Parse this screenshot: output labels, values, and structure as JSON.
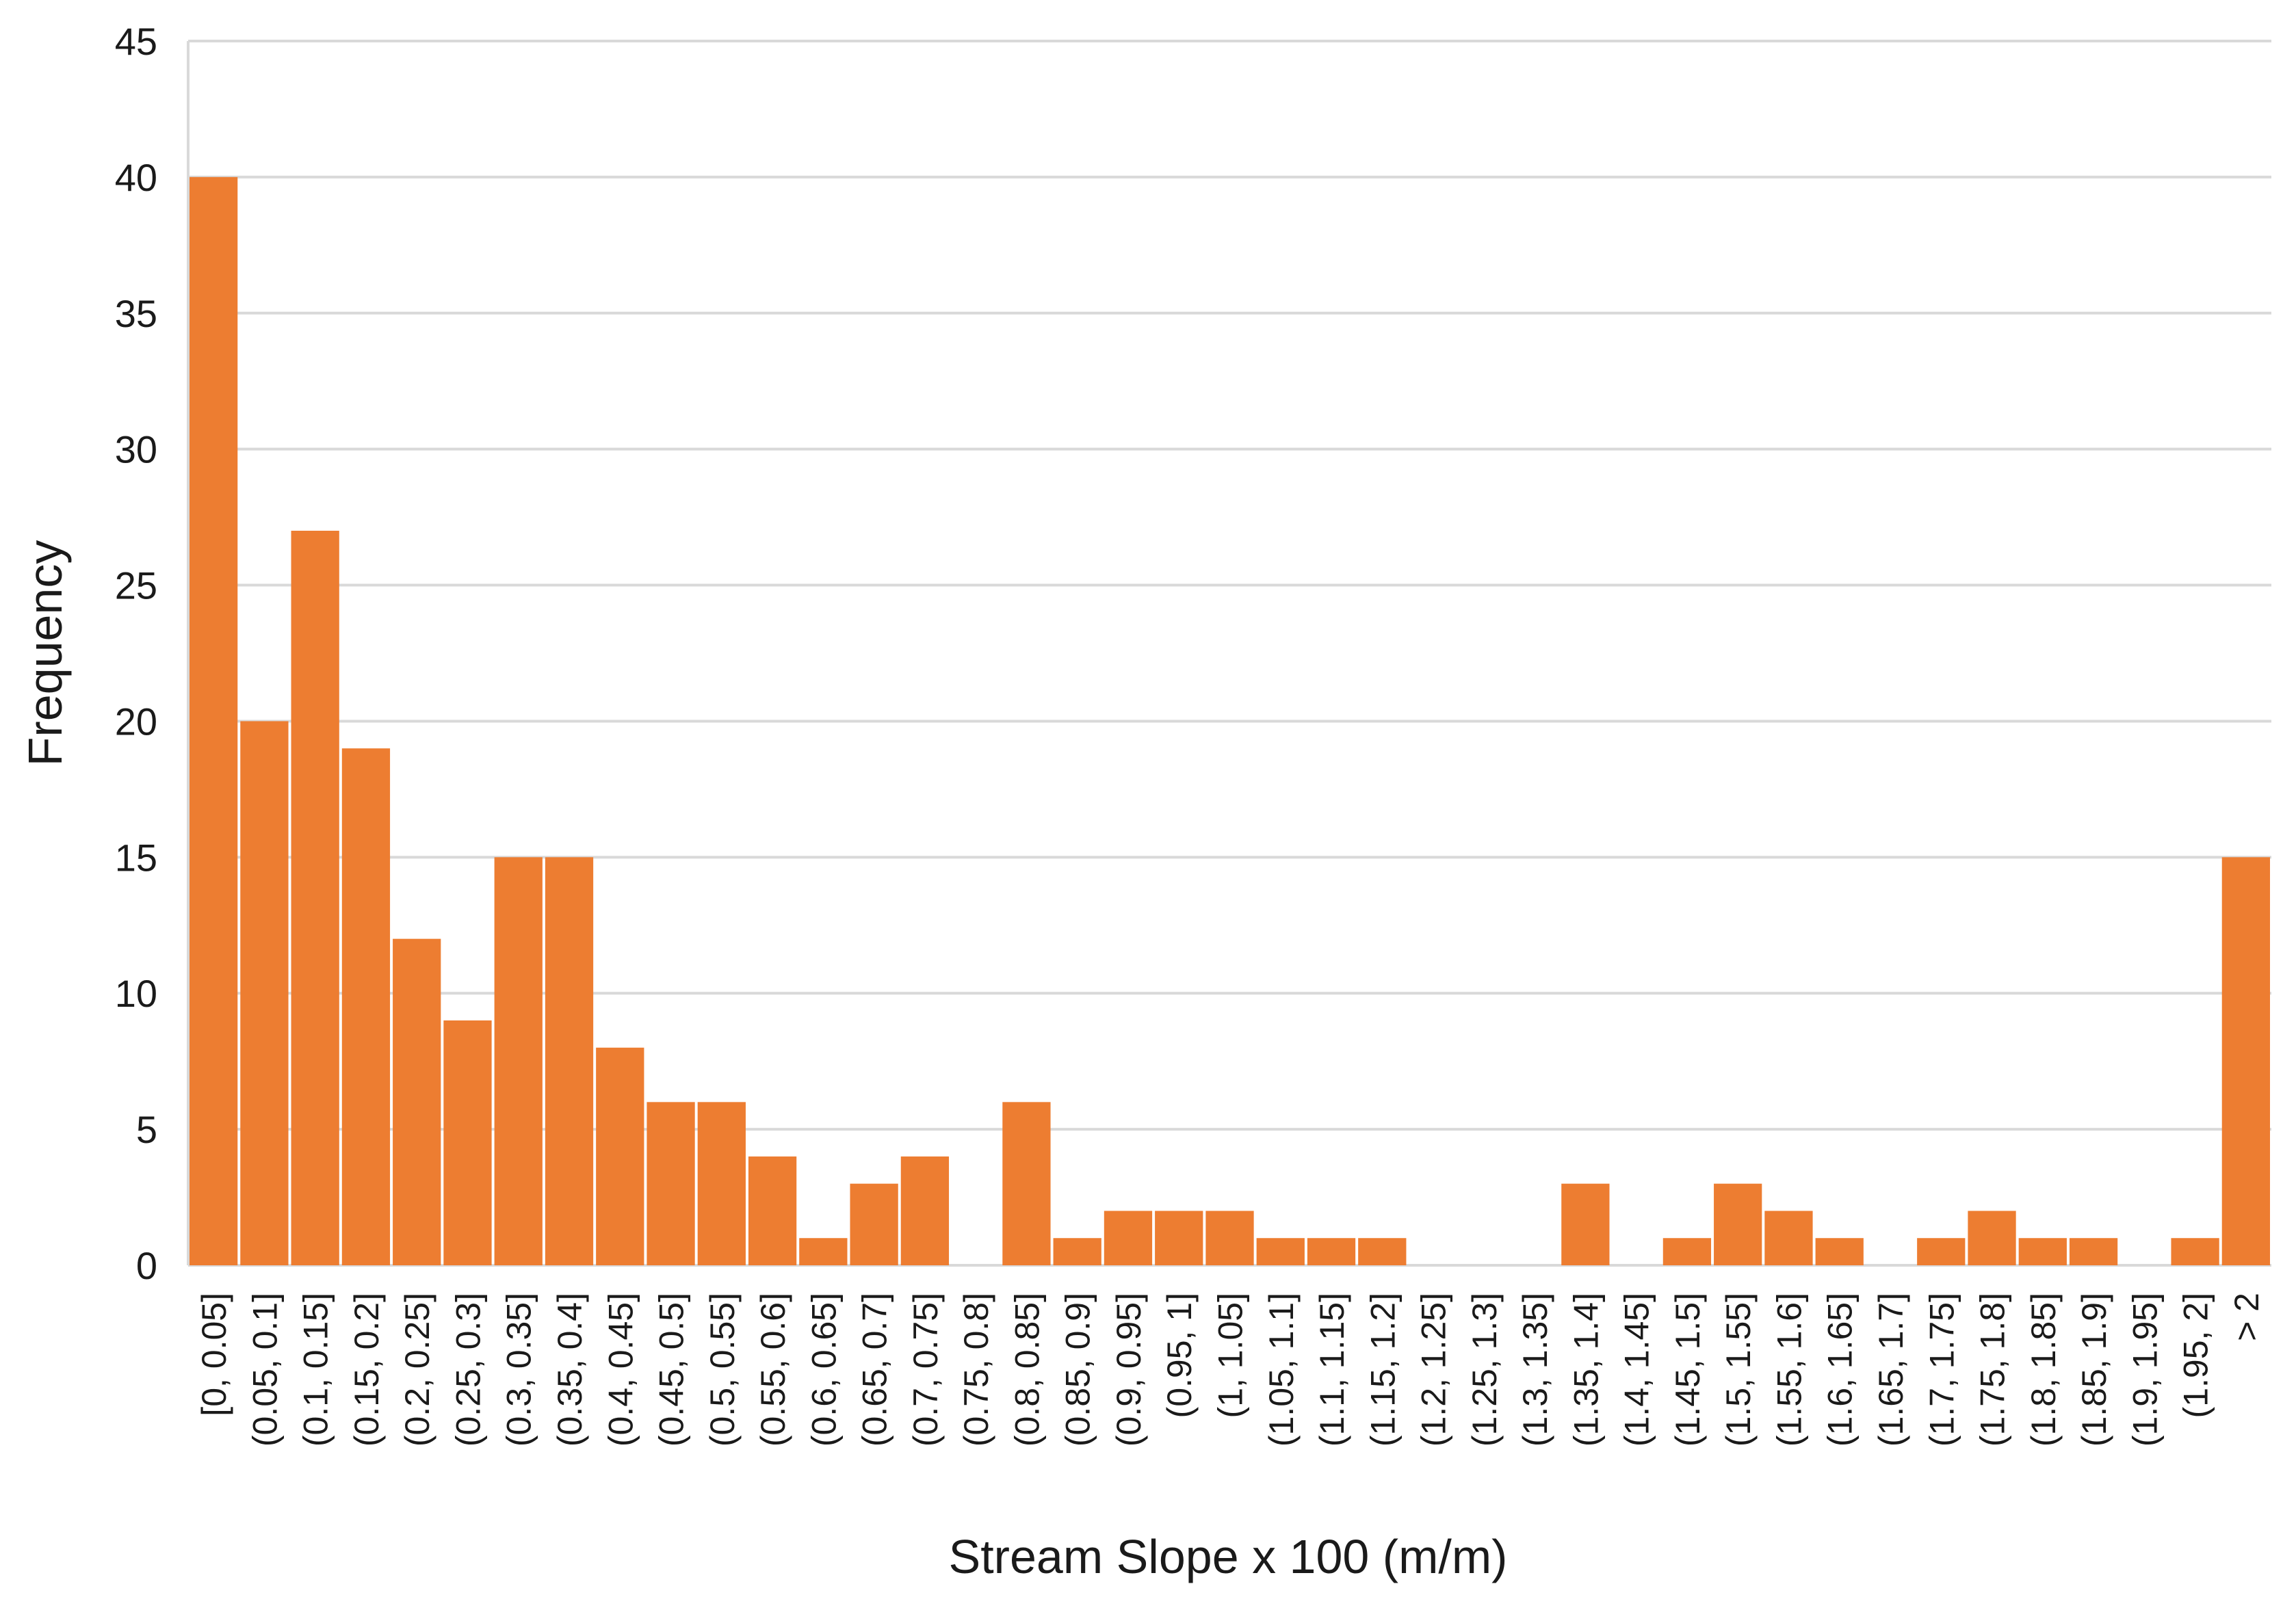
{
  "chart_data": {
    "type": "bar",
    "title": "",
    "xlabel": "Stream Slope x 100 (m/m)",
    "ylabel": "Frequency",
    "ylim": [
      0,
      45
    ],
    "yticks": [
      0,
      5,
      10,
      15,
      20,
      25,
      30,
      35,
      40,
      45
    ],
    "grid": "horizontal",
    "legend": "none",
    "bar_color": "#ED7D31",
    "grid_color": "#D9D9D9",
    "categories": [
      "[0, 0.05]",
      "(0.05, 0.1]",
      "(0.1, 0.15]",
      "(0.15, 0.2]",
      "(0.2, 0.25]",
      "(0.25, 0.3]",
      "(0.3, 0.35]",
      "(0.35, 0.4]",
      "(0.4, 0.45]",
      "(0.45, 0.5]",
      "(0.5, 0.55]",
      "(0.55, 0.6]",
      "(0.6, 0.65]",
      "(0.65, 0.7]",
      "(0.7, 0.75]",
      "(0.75, 0.8]",
      "(0.8, 0.85]",
      "(0.85, 0.9]",
      "(0.9, 0.95]",
      "(0.95, 1]",
      "(1, 1.05]",
      "(1.05, 1.1]",
      "(1.1, 1.15]",
      "(1.15, 1.2]",
      "(1.2, 1.25]",
      "(1.25, 1.3]",
      "(1.3, 1.35]",
      "(1.35, 1.4]",
      "(1.4, 1.45]",
      "(1.45, 1.5]",
      "(1.5, 1.55]",
      "(1.55, 1.6]",
      "(1.6, 1.65]",
      "(1.65, 1.7]",
      "(1.7, 1.75]",
      "(1.75, 1.8]",
      "(1.8, 1.85]",
      "(1.85, 1.9]",
      "(1.9, 1.95]",
      "(1.95, 2]",
      "> 2"
    ],
    "values": [
      40,
      20,
      27,
      19,
      12,
      9,
      15,
      15,
      8,
      6,
      6,
      4,
      1,
      3,
      4,
      0,
      6,
      1,
      2,
      2,
      2,
      1,
      1,
      1,
      0,
      0,
      0,
      3,
      0,
      1,
      3,
      2,
      1,
      0,
      1,
      2,
      1,
      1,
      0,
      1,
      15
    ]
  }
}
